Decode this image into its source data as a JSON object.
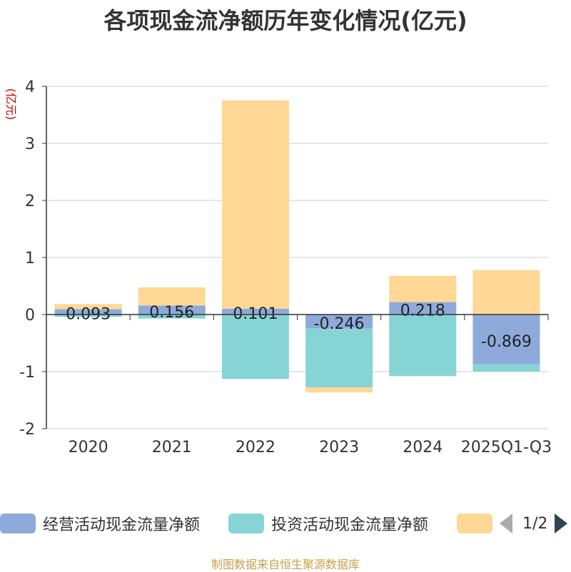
{
  "chart_data": {
    "type": "bar",
    "stacked": true,
    "title": "各项现金流净额历年变化情况(亿元)",
    "ylabel": "(亿元)",
    "xlabel": "",
    "ylim": [
      -2,
      4
    ],
    "yticks": [
      -2,
      -1,
      0,
      1,
      2,
      3,
      4
    ],
    "categories": [
      "2020",
      "2021",
      "2022",
      "2023",
      "2024",
      "2025Q1-Q3"
    ],
    "series": [
      {
        "name": "经营活动现金流量净额",
        "color": "#8eaadb",
        "values": [
          0.093,
          0.156,
          0.101,
          -0.246,
          0.218,
          -0.869
        ],
        "labels": [
          "0.093",
          "0.156",
          "0.101",
          "-0.246",
          "0.218",
          "-0.869"
        ]
      },
      {
        "name": "投资活动现金流量净额",
        "color": "#86d4d6",
        "values": [
          -0.04,
          -0.07,
          -1.13,
          -1.03,
          -1.08,
          -0.13
        ]
      },
      {
        "name": "",
        "color": "#ffd896",
        "values": [
          0.09,
          0.32,
          3.65,
          -0.09,
          0.46,
          0.78
        ]
      }
    ]
  },
  "legend": {
    "items": [
      {
        "label": "经营活动现金流量净额",
        "color": "#8eaadb"
      },
      {
        "label": "投资活动现金流量净额",
        "color": "#86d4d6"
      },
      {
        "label": "",
        "color": "#ffd896"
      }
    ],
    "page": "1/2"
  },
  "source": "制图数据来自恒生聚源数据库"
}
